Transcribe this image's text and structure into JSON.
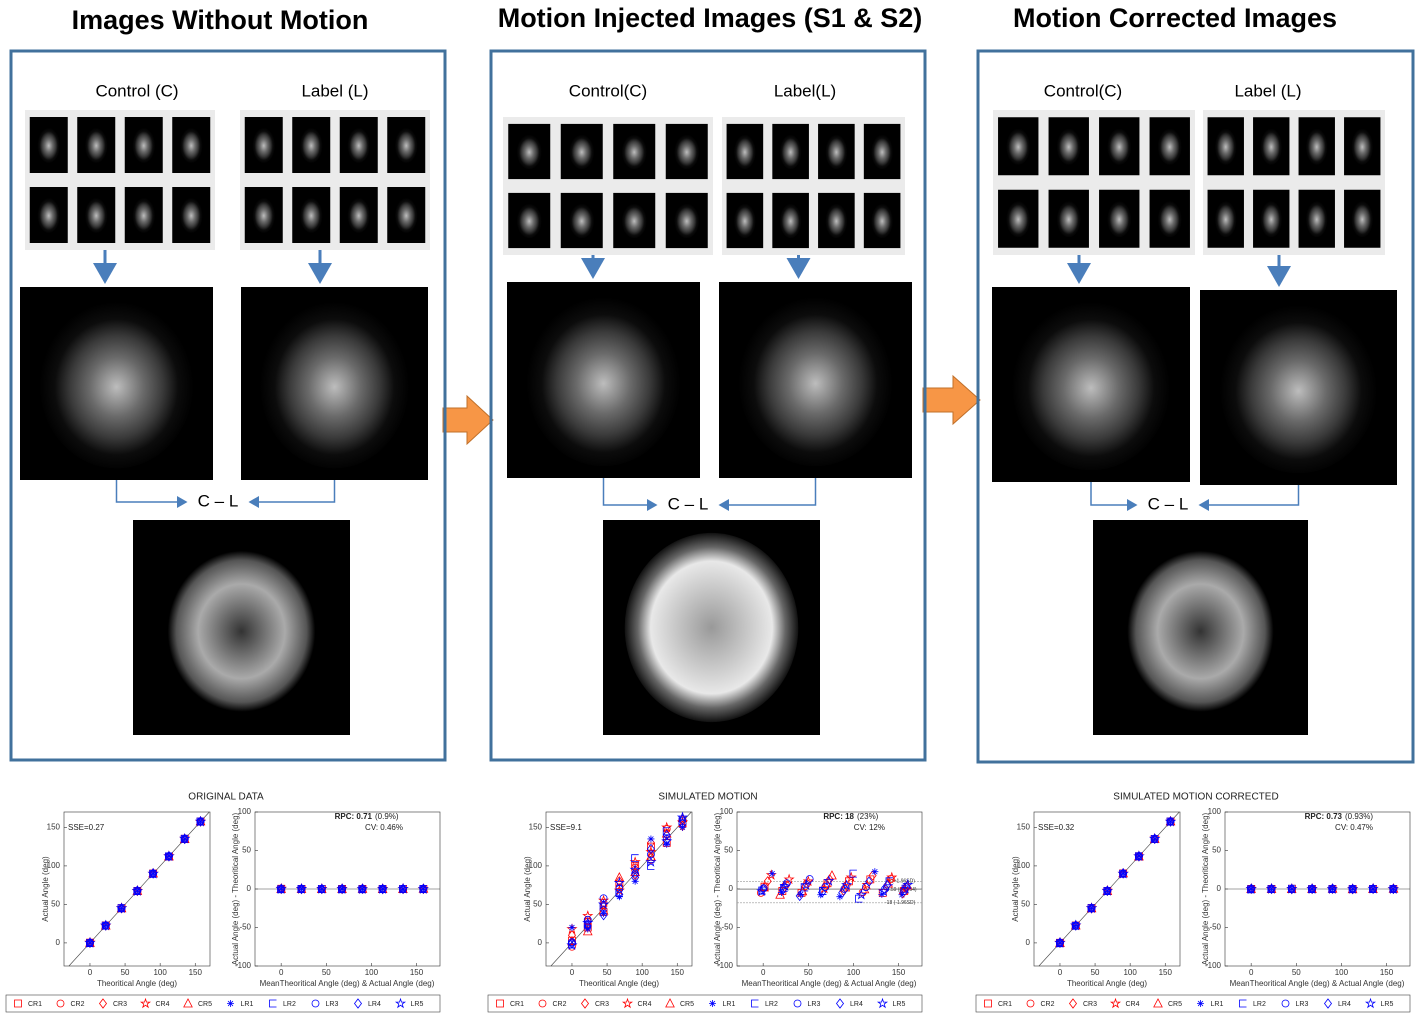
{
  "panels": [
    {
      "title": "Images Without Motion",
      "control_label": "Control (C)",
      "label_label": "Label (L)",
      "diff_label": "C – L"
    },
    {
      "title": "Motion Injected Images (S1 & S2)",
      "control_label": "Control(C)",
      "label_label": "Label(L)",
      "diff_label": "C – L"
    },
    {
      "title": "Motion Corrected Images",
      "control_label": "Control(C)",
      "label_label": "Label (L)",
      "diff_label": "C – L"
    }
  ],
  "axes": {
    "scatter_x_label": "Theoritical Angle (deg)",
    "scatter_y_label": "Actual Angle (deg)",
    "ba_x_label": "MeanTheoritical Angle (deg) & Actual Angle (deg)",
    "ba_y_label": "Actual Angle (deg) - Theoritical Angle (deg)",
    "theoretical": [
      0,
      22.5,
      45,
      67.5,
      90,
      112.5,
      135,
      157.5
    ],
    "scatter_xlim": [
      -37,
      171
    ],
    "scatter_ylim": [
      -30,
      170
    ],
    "scatter_xticks": [
      0,
      50,
      100,
      150
    ],
    "scatter_yticks": [
      0,
      50,
      100,
      150
    ],
    "ba_xlim": [
      -29,
      176
    ],
    "ba_ylim": [
      -100,
      100
    ],
    "ba_xticks": [
      0,
      50,
      100,
      150
    ],
    "ba_yticks": [
      -100,
      -50,
      0,
      50,
      100
    ]
  },
  "legend": [
    {
      "name": "CR1",
      "color": "#ff0000",
      "marker": "square"
    },
    {
      "name": "CR2",
      "color": "#ff0000",
      "marker": "circle"
    },
    {
      "name": "CR3",
      "color": "#ff0000",
      "marker": "diamond"
    },
    {
      "name": "CR4",
      "color": "#ff0000",
      "marker": "star"
    },
    {
      "name": "CR5",
      "color": "#ff0000",
      "marker": "triangle"
    },
    {
      "name": "LR1",
      "color": "#0000ff",
      "marker": "asterisk"
    },
    {
      "name": "LR2",
      "color": "#0000ff",
      "marker": "bracket"
    },
    {
      "name": "LR3",
      "color": "#0000ff",
      "marker": "circle"
    },
    {
      "name": "LR4",
      "color": "#0000ff",
      "marker": "diamond"
    },
    {
      "name": "LR5",
      "color": "#0000ff",
      "marker": "star"
    }
  ],
  "plots": [
    {
      "title": "ORIGINAL DATA",
      "sse": "SSE=0.27",
      "rpc": "RPC: 0.71",
      "rpc_pct": "(0.9%)",
      "cv": "CV: 0.46%",
      "actual": [
        [
          0.3,
          22.7,
          45.2,
          67.6,
          90.1,
          112.4,
          135.2,
          157.7
        ],
        [
          -0.2,
          22.4,
          44.8,
          67.3,
          89.8,
          112.6,
          134.9,
          157.4
        ],
        [
          0.1,
          22.6,
          45.1,
          67.5,
          90.3,
          112.5,
          135.1,
          157.6
        ],
        [
          0.4,
          22.3,
          45.3,
          67.7,
          89.9,
          112.7,
          135.3,
          157.3
        ],
        [
          -0.1,
          22.5,
          44.9,
          67.4,
          90.2,
          112.3,
          134.8,
          157.8
        ],
        [
          0.2,
          22.8,
          45.0,
          67.6,
          90.0,
          112.6,
          135.0,
          157.5
        ],
        [
          -0.3,
          22.4,
          45.2,
          67.2,
          89.7,
          112.4,
          135.2,
          157.6
        ],
        [
          0.1,
          22.6,
          44.7,
          67.5,
          90.1,
          112.8,
          134.9,
          157.4
        ],
        [
          0.3,
          22.5,
          45.1,
          67.8,
          90.3,
          112.5,
          135.1,
          157.7
        ],
        [
          -0.2,
          22.7,
          45.0,
          67.3,
          89.9,
          112.4,
          135.3,
          157.5
        ]
      ],
      "limits": []
    },
    {
      "title": "SIMULATED MOTION",
      "sse": "SSE=9.1",
      "rpc": "RPC: 18",
      "rpc_pct": "(23%)",
      "cv": "CV: 12%",
      "actual": [
        [
          3,
          20,
          40,
          75,
          100,
          125,
          130,
          155
        ],
        [
          -5,
          28,
          52,
          72,
          95,
          108,
          148,
          160
        ],
        [
          10,
          25,
          48,
          80,
          88,
          130,
          140,
          152
        ],
        [
          18,
          35,
          55,
          68,
          105,
          118,
          150,
          157
        ],
        [
          2,
          15,
          42,
          85,
          92,
          112,
          142,
          162
        ],
        [
          20,
          18,
          38,
          60,
          80,
          135,
          128,
          150
        ],
        [
          -2,
          24,
          47,
          65,
          110,
          100,
          145,
          158
        ],
        [
          1,
          30,
          58,
          70,
          90,
          115,
          135,
          155
        ],
        [
          0,
          22,
          36,
          63,
          85,
          122,
          140,
          160
        ],
        [
          -3,
          26,
          50,
          78,
          95,
          105,
          132,
          163
        ]
      ],
      "limits": [
        {
          "value": 10,
          "label": "10 (+1.96SD)"
        },
        {
          "value": -0.59,
          "label": "-0.59 (p=0.54)"
        },
        {
          "value": -18,
          "label": "-18 (-1.96SD)"
        }
      ]
    },
    {
      "title": "SIMULATED MOTION CORRECTED",
      "sse": "SSE=0.32",
      "rpc": "RPC: 0.73",
      "rpc_pct": "(0.93%)",
      "cv": "CV: 0.47%",
      "actual": [
        [
          0.2,
          22.6,
          45.3,
          67.5,
          90.2,
          112.5,
          135.1,
          157.6
        ],
        [
          -0.3,
          22.3,
          44.9,
          67.4,
          89.7,
          112.7,
          134.8,
          157.3
        ],
        [
          0.2,
          22.7,
          45.0,
          67.6,
          90.2,
          112.4,
          135.2,
          157.7
        ],
        [
          0.3,
          22.4,
          45.2,
          67.8,
          89.8,
          112.6,
          135.4,
          157.4
        ],
        [
          -0.2,
          22.6,
          44.8,
          67.3,
          90.3,
          112.2,
          134.9,
          157.9
        ],
        [
          0.1,
          22.7,
          45.1,
          67.5,
          90.1,
          112.7,
          135.1,
          157.4
        ],
        [
          -0.4,
          22.3,
          45.3,
          67.3,
          89.8,
          112.5,
          135.1,
          157.7
        ],
        [
          0.2,
          22.5,
          44.8,
          67.6,
          90.0,
          112.7,
          134.8,
          157.5
        ],
        [
          0.4,
          22.6,
          45.0,
          67.7,
          90.4,
          112.4,
          135.2,
          157.6
        ],
        [
          -0.1,
          22.8,
          45.1,
          67.4,
          89.8,
          112.5,
          135.2,
          157.4
        ]
      ],
      "limits": []
    }
  ]
}
